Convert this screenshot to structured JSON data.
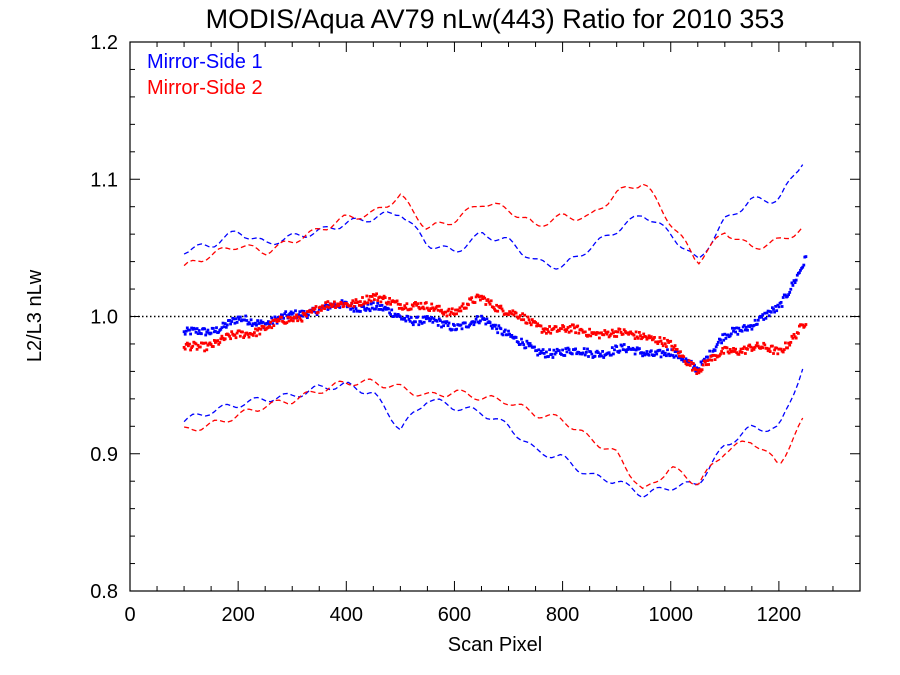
{
  "chart_data": {
    "type": "scatter",
    "title": "MODIS/Aqua AV79 nLw(443) Ratio for 2010 353",
    "xlabel": "Scan Pixel",
    "ylabel": "L2/L3 nLw",
    "xlim": [
      0,
      1350
    ],
    "ylim": [
      0.8,
      1.2
    ],
    "x_ticks": [
      0,
      200,
      400,
      600,
      800,
      1000,
      1200
    ],
    "x_tick_labels": [
      "0",
      "200",
      "400",
      "600",
      "800",
      "1000",
      "1200"
    ],
    "y_ticks": [
      0.8,
      0.9,
      1.0,
      1.1,
      1.2
    ],
    "y_tick_labels": [
      "0.8",
      "0.9",
      "1.0",
      "1.1",
      "1.2"
    ],
    "reference_line": {
      "y": 1.0,
      "style": "dotted"
    },
    "legend_position": "top-left",
    "series": [
      {
        "name": "Mirror-Side 1",
        "color": "#0000ff",
        "mean": {
          "x": [
            100,
            150,
            200,
            250,
            300,
            350,
            400,
            450,
            500,
            550,
            600,
            650,
            700,
            750,
            800,
            850,
            900,
            950,
            1000,
            1050,
            1100,
            1150,
            1200,
            1250
          ],
          "y": [
            0.987,
            0.99,
            0.997,
            0.996,
            1.0,
            1.006,
            1.008,
            1.007,
            1.0,
            0.996,
            0.993,
            0.997,
            0.988,
            0.973,
            0.975,
            0.973,
            0.976,
            0.974,
            0.973,
            0.963,
            0.985,
            0.995,
            1.005,
            1.043
          ]
        },
        "upper": {
          "x": [
            100,
            150,
            200,
            250,
            300,
            350,
            400,
            450,
            500,
            550,
            600,
            650,
            700,
            750,
            800,
            850,
            900,
            950,
            1000,
            1050,
            1100,
            1150,
            1200,
            1250
          ],
          "y": [
            1.048,
            1.052,
            1.062,
            1.053,
            1.058,
            1.062,
            1.068,
            1.072,
            1.076,
            1.053,
            1.047,
            1.06,
            1.055,
            1.04,
            1.036,
            1.05,
            1.063,
            1.075,
            1.06,
            1.04,
            1.07,
            1.085,
            1.085,
            1.117
          ]
        },
        "lower": {
          "x": [
            100,
            150,
            200,
            250,
            300,
            350,
            400,
            450,
            500,
            550,
            600,
            650,
            700,
            750,
            800,
            850,
            900,
            950,
            1000,
            1050,
            1100,
            1150,
            1200,
            1250
          ],
          "y": [
            0.924,
            0.931,
            0.936,
            0.94,
            0.942,
            0.948,
            0.95,
            0.944,
            0.918,
            0.94,
            0.934,
            0.93,
            0.92,
            0.902,
            0.897,
            0.884,
            0.88,
            0.87,
            0.876,
            0.878,
            0.906,
            0.919,
            0.918,
            0.968
          ]
        }
      },
      {
        "name": "Mirror-Side 2",
        "color": "#ff0000",
        "mean": {
          "x": [
            100,
            150,
            200,
            250,
            300,
            350,
            400,
            450,
            500,
            550,
            600,
            650,
            700,
            750,
            800,
            850,
            900,
            950,
            1000,
            1050,
            1100,
            1150,
            1200,
            1250
          ],
          "y": [
            0.977,
            0.98,
            0.986,
            0.992,
            0.998,
            1.006,
            1.01,
            1.013,
            1.01,
            1.006,
            1.004,
            1.013,
            1.004,
            0.993,
            0.99,
            0.989,
            0.987,
            0.987,
            0.978,
            0.962,
            0.974,
            0.978,
            0.974,
            0.996
          ]
        },
        "upper": {
          "x": [
            100,
            150,
            200,
            250,
            300,
            350,
            400,
            450,
            500,
            550,
            600,
            650,
            700,
            750,
            800,
            850,
            900,
            950,
            1000,
            1050,
            1100,
            1150,
            1200,
            1250
          ],
          "y": [
            1.036,
            1.045,
            1.052,
            1.047,
            1.055,
            1.063,
            1.072,
            1.075,
            1.088,
            1.064,
            1.07,
            1.083,
            1.078,
            1.066,
            1.073,
            1.072,
            1.09,
            1.098,
            1.068,
            1.04,
            1.062,
            1.05,
            1.055,
            1.065
          ]
        },
        "lower": {
          "x": [
            100,
            150,
            200,
            250,
            300,
            350,
            400,
            450,
            500,
            550,
            600,
            650,
            700,
            750,
            800,
            850,
            900,
            950,
            1000,
            1050,
            1100,
            1150,
            1200,
            1250
          ],
          "y": [
            0.917,
            0.921,
            0.928,
            0.935,
            0.939,
            0.946,
            0.952,
            0.952,
            0.948,
            0.942,
            0.945,
            0.941,
            0.938,
            0.929,
            0.925,
            0.911,
            0.9,
            0.872,
            0.89,
            0.878,
            0.902,
            0.91,
            0.892,
            0.928
          ]
        }
      }
    ]
  }
}
